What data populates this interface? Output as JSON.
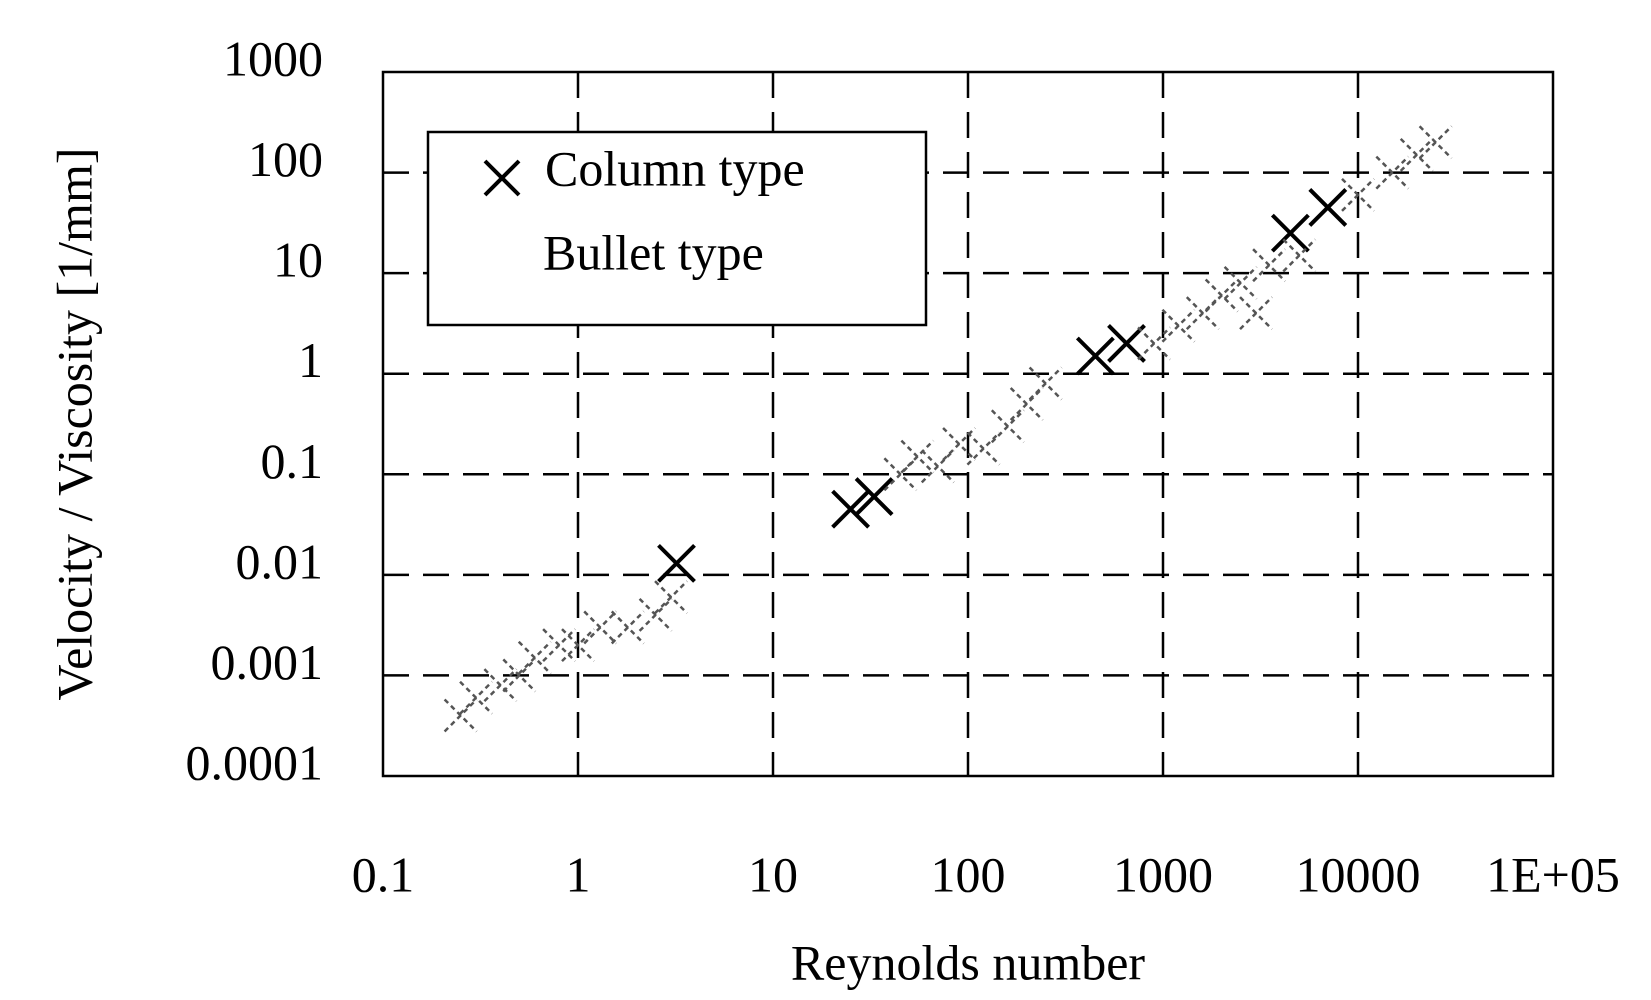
{
  "chart_data": {
    "type": "scatter",
    "x_label": "Reynolds number",
    "y_label": "Velocity / Viscosity [1/mm]",
    "xlim": [
      0.1,
      100000
    ],
    "ylim": [
      0.0001,
      1000
    ],
    "xticks": [
      0.1,
      1,
      10,
      100,
      1000,
      10000,
      {
        "value": 100000,
        "label": "1E+05"
      }
    ],
    "yticks": [
      0.0001,
      0.001,
      0.01,
      0.1,
      1,
      10,
      100,
      1000
    ],
    "xscale": "log",
    "yscale": "log",
    "grid": true,
    "legend": "upper left",
    "series": [
      {
        "name": "Column type",
        "color": "#000000",
        "x": [
          3.2,
          25,
          33,
          450,
          650,
          4500,
          7000
        ],
        "values": [
          0.013,
          0.045,
          0.06,
          1.5,
          2,
          25,
          45
        ]
      },
      {
        "name": "Bullet type",
        "color": "#555555",
        "x": [
          0.25,
          0.3,
          0.4,
          0.5,
          0.6,
          0.8,
          1,
          1.3,
          1.8,
          2.5,
          3,
          45,
          55,
          70,
          90,
          120,
          160,
          200,
          250,
          900,
          1200,
          1600,
          2000,
          2500,
          3000,
          3500,
          5000,
          10000,
          15000,
          20000,
          25000
        ],
        "values": [
          0.0004,
          0.0006,
          0.0008,
          0.001,
          0.0015,
          0.002,
          0.002,
          0.003,
          0.003,
          0.004,
          0.006,
          0.1,
          0.15,
          0.12,
          0.2,
          0.18,
          0.3,
          0.5,
          0.8,
          2,
          3,
          4,
          6,
          8,
          4,
          12,
          15,
          60,
          100,
          150,
          200
        ]
      }
    ]
  }
}
